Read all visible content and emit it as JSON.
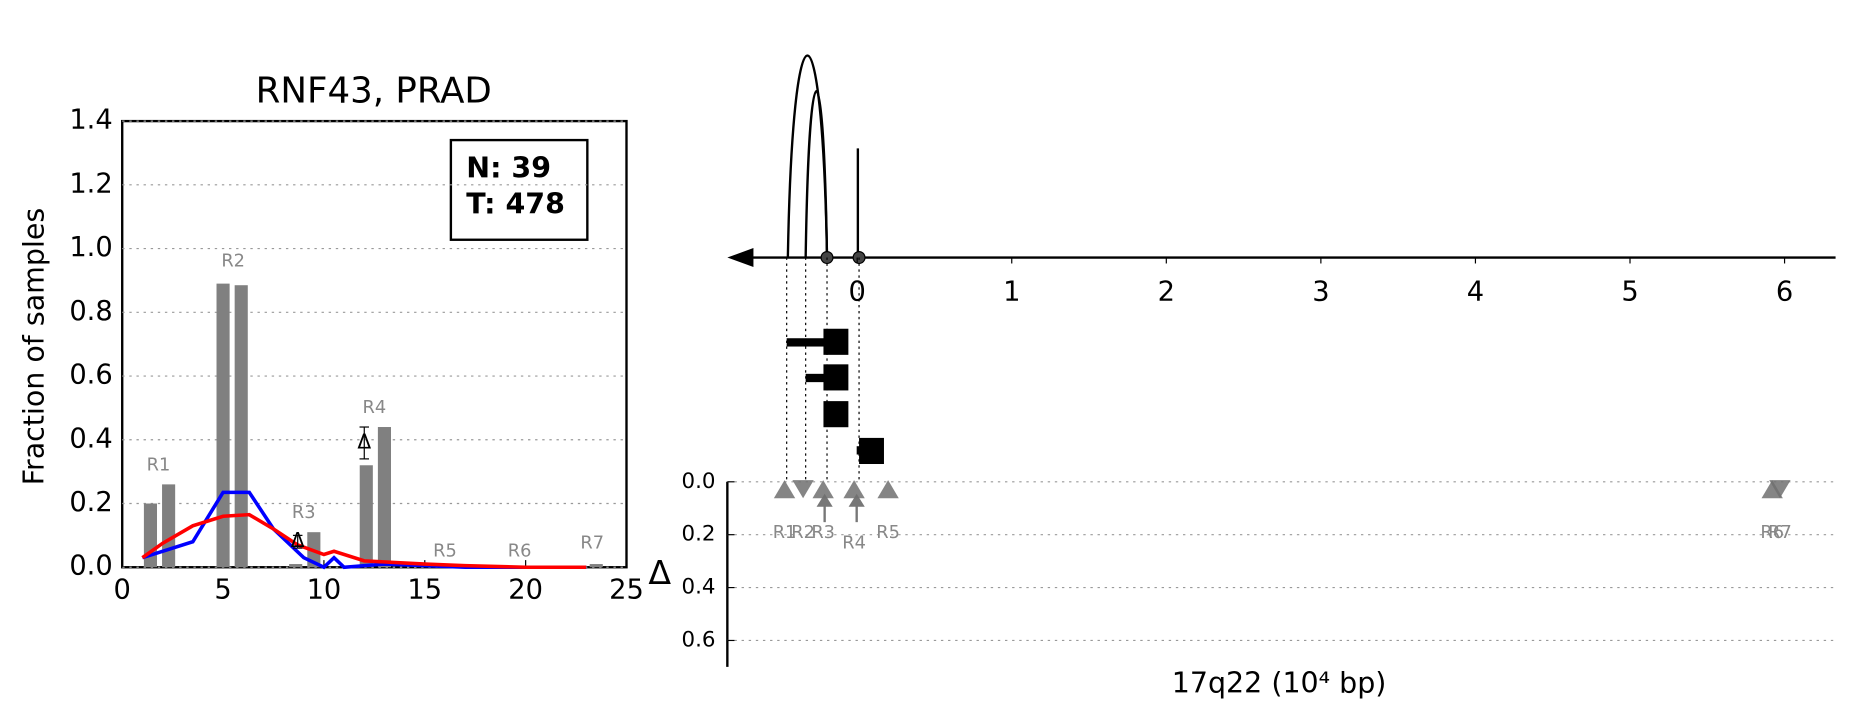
{
  "chart_data": [
    {
      "type": "bar",
      "title": "RNF43, PRAD",
      "y_label": "Fraction of samples",
      "xlim": [
        0,
        25
      ],
      "xticks": [
        0,
        5,
        10,
        15,
        20,
        25
      ],
      "ylim": [
        0,
        1.4
      ],
      "yticks": [
        {
          "value": 0,
          "label": "0.0"
        },
        {
          "value": 0.2,
          "label": "0.2"
        },
        {
          "value": 0.4,
          "label": "0.4"
        },
        {
          "value": 0.6,
          "label": "0.6"
        },
        {
          "value": 0.8,
          "label": "0.8"
        },
        {
          "value": 1.0,
          "label": "1.0"
        },
        {
          "value": 1.2,
          "label": "1.2"
        },
        {
          "value": 1.4,
          "label": "1.4"
        }
      ],
      "grid": true,
      "legend_position": "upper right",
      "legend_lines": [
        "N: 39",
        "T: 478"
      ],
      "color": "#808080",
      "x": [
        1.4,
        2.3,
        5.0,
        5.9,
        8.6,
        9.5,
        12.1,
        13.0,
        15.5,
        16.4,
        19.5,
        20.4,
        22.7,
        23.5
      ],
      "values": [
        0.2,
        0.26,
        0.89,
        0.885,
        0.01,
        0.11,
        0.32,
        0.44,
        0.005,
        0.005,
        0.005,
        0.005,
        0.005,
        0.01
      ],
      "region_labels": [
        "R1",
        "R2",
        "R3",
        "R4",
        "R5",
        "R6",
        "R7"
      ],
      "lines": [
        {
          "color": "#0000ff",
          "x": [
            1,
            2,
            3.5,
            5,
            6.3,
            7.5,
            9,
            10,
            10.5,
            11,
            13,
            15,
            17,
            20,
            23
          ],
          "values": [
            0.03,
            0.05,
            0.08,
            0.235,
            0.235,
            0.12,
            0.03,
            0,
            0.03,
            0,
            0.01,
            0.005,
            0,
            0,
            0
          ]
        },
        {
          "color": "#ff0000",
          "x": [
            1,
            2,
            3.5,
            5,
            6.3,
            7.5,
            8.7,
            10,
            10.5,
            12,
            15,
            17,
            20,
            23
          ],
          "values": [
            0.03,
            0.075,
            0.13,
            0.16,
            0.165,
            0.12,
            0.07,
            0.04,
            0.05,
            0.02,
            0.01,
            0.005,
            0,
            0
          ]
        }
      ],
      "delta_symbol": "Δ",
      "deltas": [
        {
          "x": 8.7,
          "value": 0.08,
          "error": 0.02
        },
        {
          "x": 12.0,
          "value": 0.39,
          "error": 0.05
        }
      ]
    },
    {
      "type": "genome",
      "x_label": "17q22 (10⁴ bp)",
      "y_label": "Δ",
      "xlim": [
        -0.84,
        6.33
      ],
      "xticks": [
        0,
        1,
        2,
        3,
        4,
        5,
        6
      ],
      "ylim": [
        0,
        0.7
      ],
      "yticks": [
        {
          "value": 0,
          "label": "0.0"
        },
        {
          "value": 0.2,
          "label": "0.2"
        },
        {
          "value": 0.4,
          "label": "0.4"
        },
        {
          "value": 0.6,
          "label": "0.6"
        }
      ],
      "grid": true,
      "color": "#707070",
      "regions": [
        "R1",
        "R2",
        "R3",
        "R4",
        "R5",
        "R6",
        "R7"
      ],
      "x": [
        -0.47,
        -0.35,
        -0.22,
        -0.02,
        0.2,
        5.92,
        5.97
      ],
      "values": [
        0.03,
        0.03,
        0.03,
        0.03,
        0.03,
        0.03,
        0.03
      ],
      "markers": [
        "up",
        "down",
        "up",
        "up",
        "up",
        "up",
        "down"
      ]
    }
  ]
}
